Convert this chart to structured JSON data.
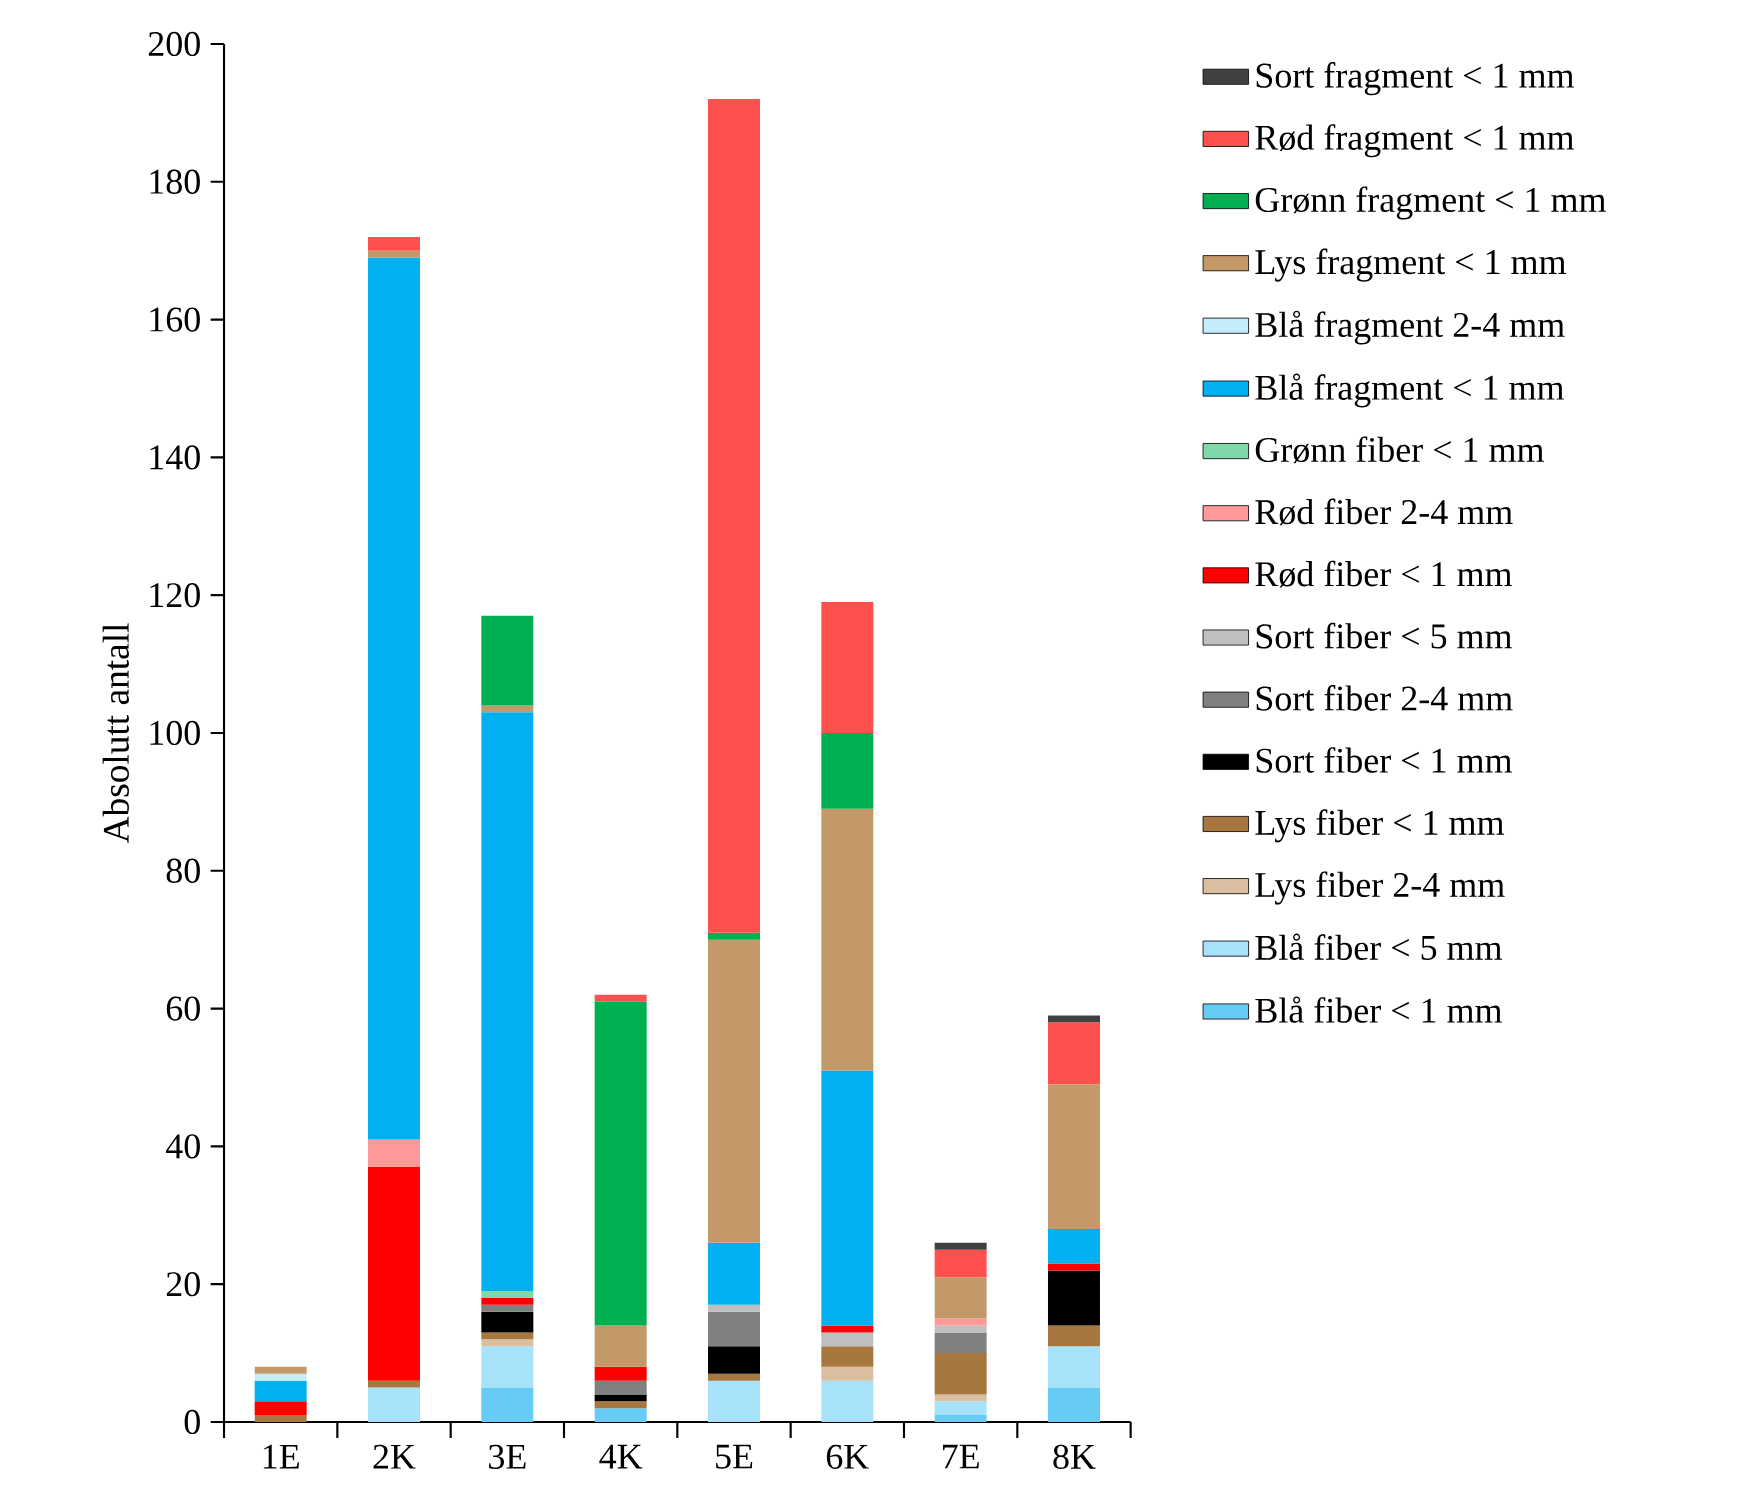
{
  "chart_data": {
    "type": "bar",
    "stacked": true,
    "ylabel": "Absolutt antall",
    "categories": [
      "1E",
      "2K",
      "3E",
      "4K",
      "5E",
      "6K",
      "7E",
      "8K"
    ],
    "ylim": [
      0,
      200
    ],
    "yticks": [
      0,
      20,
      40,
      60,
      80,
      100,
      120,
      140,
      160,
      180,
      200
    ],
    "grid": false,
    "legend": "right",
    "series": [
      {
        "name": "Blå fiber < 1 mm",
        "color": "#66ccf5",
        "values": [
          0,
          0,
          5,
          2,
          0,
          0,
          1,
          5
        ]
      },
      {
        "name": "Blå fiber < 5 mm",
        "color": "#a6e2f9",
        "values": [
          0,
          5,
          6,
          0,
          6,
          6,
          2,
          6
        ]
      },
      {
        "name": "Lys fiber 2-4 mm",
        "color": "#d9bf9f",
        "values": [
          0,
          0,
          1,
          0,
          0,
          2,
          1,
          0
        ]
      },
      {
        "name": "Lys fiber < 1 mm",
        "color": "#a6773f",
        "values": [
          1,
          1,
          1,
          1,
          1,
          3,
          6,
          3
        ]
      },
      {
        "name": "Sort fiber < 1 mm",
        "color": "#000000",
        "values": [
          0,
          0,
          3,
          1,
          4,
          0,
          0,
          8
        ]
      },
      {
        "name": "Sort fiber 2-4 mm",
        "color": "#808080",
        "values": [
          0,
          0,
          1,
          2,
          5,
          0,
          3,
          0
        ]
      },
      {
        "name": "Sort fiber < 5 mm",
        "color": "#bfbfbf",
        "values": [
          0,
          0,
          0,
          0,
          1,
          2,
          1,
          0
        ]
      },
      {
        "name": "Rød fiber < 1 mm",
        "color": "#ff0000",
        "values": [
          2,
          31,
          1,
          2,
          0,
          1,
          0,
          1
        ]
      },
      {
        "name": "Rød fiber 2-4 mm",
        "color": "#ff9999",
        "values": [
          0,
          4,
          0,
          0,
          0,
          0,
          1,
          0
        ]
      },
      {
        "name": "Grønn fiber < 1 mm",
        "color": "#80d8a8",
        "values": [
          0,
          0,
          1,
          0,
          0,
          0,
          0,
          0
        ]
      },
      {
        "name": "Blå fragment < 1 mm",
        "color": "#00b0f0",
        "values": [
          3,
          128,
          84,
          0,
          9,
          37,
          0,
          5
        ]
      },
      {
        "name": "Blå fragment 2-4 mm",
        "color": "#c4ecfb",
        "values": [
          1,
          0,
          0,
          0,
          0,
          0,
          0,
          0
        ]
      },
      {
        "name": "Lys fragment < 1 mm",
        "color": "#c4996a",
        "values": [
          1,
          1,
          1,
          6,
          44,
          38,
          6,
          21
        ]
      },
      {
        "name": "Grønn fragment < 1 mm",
        "color": "#00b050",
        "values": [
          0,
          0,
          13,
          47,
          1,
          11,
          0,
          0
        ]
      },
      {
        "name": "Rød fragment < 1 mm",
        "color": "#ff5050",
        "values": [
          0,
          2,
          0,
          1,
          121,
          19,
          4,
          9
        ]
      },
      {
        "name": "Sort fragment < 1 mm",
        "color": "#404040",
        "values": [
          0,
          0,
          0,
          0,
          0,
          0,
          1,
          1
        ]
      }
    ]
  }
}
